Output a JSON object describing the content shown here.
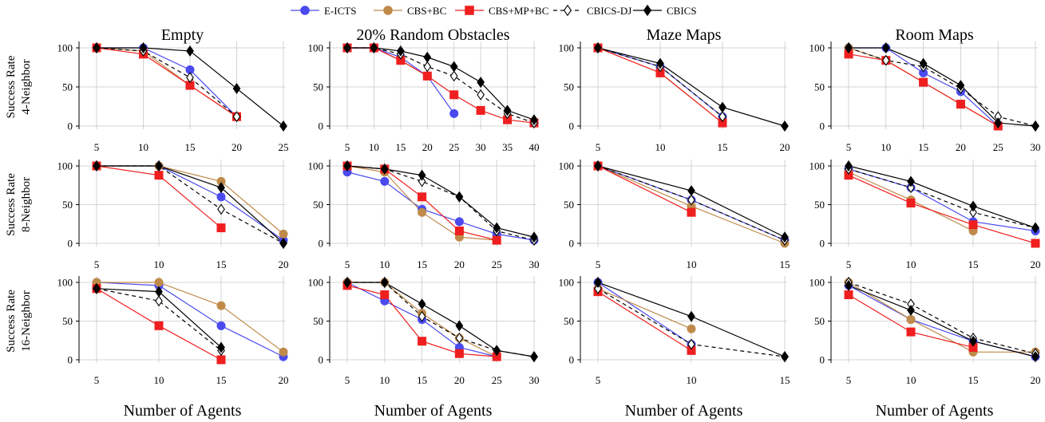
{
  "legend": [
    {
      "name": "E-ICTS",
      "color": "#4a4aef",
      "marker": "circle",
      "dash": false
    },
    {
      "name": "CBS+BC",
      "color": "#bf8a4a",
      "marker": "circle",
      "dash": false
    },
    {
      "name": "CBS+MP+BC",
      "color": "#ef1f1f",
      "marker": "square",
      "dash": false
    },
    {
      "name": "CBICS-DJ",
      "color": "#000000",
      "marker": "diamond-open",
      "dash": true
    },
    {
      "name": "CBICS",
      "color": "#000000",
      "marker": "diamond",
      "dash": false
    }
  ],
  "columns": [
    "Empty",
    "20% Random Obstacles",
    "Maze Maps",
    "Room Maps"
  ],
  "rows": [
    {
      "title": "Success Rate",
      "subtitle": "4-Neighbor"
    },
    {
      "title": "Success Rate",
      "subtitle": "8-Neighbor"
    },
    {
      "title": "Success Rate",
      "subtitle": "16-Neighbor"
    }
  ],
  "xlabel": "Number of Agents",
  "chart_data": [
    {
      "type": "line",
      "row": 0,
      "col": 0,
      "xticks": [
        5,
        10,
        15,
        20,
        25
      ],
      "ylim": [
        0,
        100
      ],
      "yticks": [
        0,
        50,
        100
      ],
      "series": [
        {
          "name": "E-ICTS",
          "x": [
            5,
            10,
            15,
            20
          ],
          "y": [
            100,
            100,
            72,
            12
          ]
        },
        {
          "name": "CBS+BC",
          "x": [
            5,
            10,
            15,
            20
          ],
          "y": [
            100,
            96,
            52,
            12
          ]
        },
        {
          "name": "CBS+MP+BC",
          "x": [
            5,
            10,
            15,
            20
          ],
          "y": [
            100,
            92,
            52,
            12
          ]
        },
        {
          "name": "CBICS-DJ",
          "x": [
            5,
            10,
            15,
            20
          ],
          "y": [
            100,
            96,
            62,
            12
          ]
        },
        {
          "name": "CBICS",
          "x": [
            5,
            10,
            15,
            20,
            25
          ],
          "y": [
            100,
            100,
            96,
            48,
            0
          ]
        }
      ]
    },
    {
      "type": "line",
      "row": 0,
      "col": 1,
      "xticks": [
        5,
        10,
        15,
        20,
        25,
        30,
        35,
        40
      ],
      "ylim": [
        0,
        100
      ],
      "yticks": [
        0,
        50,
        100
      ],
      "series": [
        {
          "name": "E-ICTS",
          "x": [
            5,
            10,
            15,
            20,
            25
          ],
          "y": [
            100,
            100,
            88,
            64,
            16
          ]
        },
        {
          "name": "CBS+BC",
          "x": [
            5,
            10,
            15,
            20
          ],
          "y": [
            100,
            100,
            84,
            64
          ]
        },
        {
          "name": "CBS+MP+BC",
          "x": [
            5,
            10,
            15,
            20,
            25,
            30,
            35,
            40
          ],
          "y": [
            100,
            100,
            84,
            64,
            40,
            20,
            8,
            4
          ]
        },
        {
          "name": "CBICS-DJ",
          "x": [
            5,
            10,
            15,
            20,
            25,
            30,
            35,
            40
          ],
          "y": [
            100,
            100,
            92,
            76,
            64,
            40,
            16,
            4
          ]
        },
        {
          "name": "CBICS",
          "x": [
            5,
            10,
            15,
            20,
            25,
            30,
            35,
            40
          ],
          "y": [
            100,
            100,
            96,
            88,
            76,
            56,
            20,
            8
          ]
        }
      ]
    },
    {
      "type": "line",
      "row": 0,
      "col": 2,
      "xticks": [
        5,
        10,
        15,
        20
      ],
      "ylim": [
        0,
        100
      ],
      "yticks": [
        0,
        50,
        100
      ],
      "series": [
        {
          "name": "E-ICTS",
          "x": [
            5,
            10,
            15
          ],
          "y": [
            100,
            76,
            12
          ]
        },
        {
          "name": "CBS+BC",
          "x": [
            5,
            10,
            15
          ],
          "y": [
            100,
            68,
            4
          ]
        },
        {
          "name": "CBS+MP+BC",
          "x": [
            5,
            10,
            15
          ],
          "y": [
            100,
            68,
            4
          ]
        },
        {
          "name": "CBICS-DJ",
          "x": [
            5,
            10,
            15
          ],
          "y": [
            100,
            76,
            12
          ]
        },
        {
          "name": "CBICS",
          "x": [
            5,
            10,
            15,
            20
          ],
          "y": [
            100,
            80,
            24,
            0
          ]
        }
      ]
    },
    {
      "type": "line",
      "row": 0,
      "col": 3,
      "xticks": [
        5,
        10,
        15,
        20,
        25,
        30
      ],
      "ylim": [
        0,
        100
      ],
      "yticks": [
        0,
        50,
        100
      ],
      "series": [
        {
          "name": "E-ICTS",
          "x": [
            5,
            10,
            15,
            20,
            25
          ],
          "y": [
            100,
            100,
            68,
            44,
            0
          ]
        },
        {
          "name": "CBS+BC",
          "x": [
            5,
            10,
            15,
            20,
            25
          ],
          "y": [
            100,
            84,
            56,
            28,
            0
          ]
        },
        {
          "name": "CBS+MP+BC",
          "x": [
            5,
            10,
            15,
            20,
            25
          ],
          "y": [
            92,
            84,
            56,
            28,
            0
          ]
        },
        {
          "name": "CBICS-DJ",
          "x": [
            5,
            10,
            15,
            20,
            25,
            30
          ],
          "y": [
            100,
            84,
            76,
            48,
            12,
            0
          ]
        },
        {
          "name": "CBICS",
          "x": [
            5,
            10,
            15,
            20,
            25,
            30
          ],
          "y": [
            100,
            100,
            80,
            52,
            4,
            0
          ]
        }
      ]
    },
    {
      "type": "line",
      "row": 1,
      "col": 0,
      "xticks": [
        5,
        10,
        15,
        20
      ],
      "ylim": [
        0,
        100
      ],
      "yticks": [
        0,
        50,
        100
      ],
      "series": [
        {
          "name": "E-ICTS",
          "x": [
            5,
            10,
            15,
            20
          ],
          "y": [
            100,
            100,
            60,
            4
          ]
        },
        {
          "name": "CBS+BC",
          "x": [
            5,
            10,
            15,
            20
          ],
          "y": [
            100,
            100,
            80,
            12
          ]
        },
        {
          "name": "CBS+MP+BC",
          "x": [
            5,
            10,
            15
          ],
          "y": [
            100,
            88,
            20
          ]
        },
        {
          "name": "CBICS-DJ",
          "x": [
            5,
            10,
            15,
            20
          ],
          "y": [
            100,
            100,
            44,
            0
          ]
        },
        {
          "name": "CBICS",
          "x": [
            5,
            10,
            15,
            20
          ],
          "y": [
            100,
            100,
            72,
            0
          ]
        }
      ]
    },
    {
      "type": "line",
      "row": 1,
      "col": 1,
      "xticks": [
        5,
        10,
        15,
        20,
        25,
        30
      ],
      "ylim": [
        0,
        100
      ],
      "yticks": [
        0,
        50,
        100
      ],
      "series": [
        {
          "name": "E-ICTS",
          "x": [
            5,
            10,
            15,
            20,
            25,
            30
          ],
          "y": [
            92,
            80,
            44,
            28,
            12,
            4
          ]
        },
        {
          "name": "CBS+BC",
          "x": [
            5,
            10,
            15,
            20,
            25
          ],
          "y": [
            100,
            92,
            40,
            8,
            4
          ]
        },
        {
          "name": "CBS+MP+BC",
          "x": [
            5,
            10,
            15,
            20,
            25
          ],
          "y": [
            100,
            96,
            60,
            16,
            4
          ]
        },
        {
          "name": "CBICS-DJ",
          "x": [
            5,
            10,
            15,
            20,
            25,
            30
          ],
          "y": [
            100,
            96,
            80,
            60,
            16,
            4
          ]
        },
        {
          "name": "CBICS",
          "x": [
            5,
            10,
            15,
            20,
            25,
            30
          ],
          "y": [
            100,
            96,
            88,
            60,
            20,
            8
          ]
        }
      ]
    },
    {
      "type": "line",
      "row": 1,
      "col": 2,
      "xticks": [
        5,
        10,
        15
      ],
      "ylim": [
        0,
        100
      ],
      "yticks": [
        0,
        50,
        100
      ],
      "series": [
        {
          "name": "E-ICTS",
          "x": [
            5,
            10,
            15
          ],
          "y": [
            100,
            56,
            4
          ]
        },
        {
          "name": "CBS+BC",
          "x": [
            5,
            10,
            15
          ],
          "y": [
            100,
            48,
            0
          ]
        },
        {
          "name": "CBS+MP+BC",
          "x": [
            5,
            10
          ],
          "y": [
            100,
            40
          ]
        },
        {
          "name": "CBICS-DJ",
          "x": [
            5,
            10,
            15
          ],
          "y": [
            100,
            56,
            4
          ]
        },
        {
          "name": "CBICS",
          "x": [
            5,
            10,
            15
          ],
          "y": [
            100,
            68,
            8
          ]
        }
      ]
    },
    {
      "type": "line",
      "row": 1,
      "col": 3,
      "xticks": [
        5,
        10,
        15,
        20
      ],
      "ylim": [
        0,
        100
      ],
      "yticks": [
        0,
        50,
        100
      ],
      "series": [
        {
          "name": "E-ICTS",
          "x": [
            5,
            10,
            15,
            20
          ],
          "y": [
            96,
            72,
            28,
            16
          ]
        },
        {
          "name": "CBS+BC",
          "x": [
            5,
            10,
            15
          ],
          "y": [
            92,
            56,
            16
          ]
        },
        {
          "name": "CBS+MP+BC",
          "x": [
            5,
            10,
            15,
            20
          ],
          "y": [
            88,
            52,
            24,
            0
          ]
        },
        {
          "name": "CBICS-DJ",
          "x": [
            5,
            10,
            15,
            20
          ],
          "y": [
            96,
            72,
            40,
            20
          ]
        },
        {
          "name": "CBICS",
          "x": [
            5,
            10,
            15,
            20
          ],
          "y": [
            100,
            80,
            48,
            20
          ]
        }
      ]
    },
    {
      "type": "line",
      "row": 2,
      "col": 0,
      "xticks": [
        5,
        10,
        15,
        20
      ],
      "ylim": [
        0,
        100
      ],
      "yticks": [
        0,
        50,
        100
      ],
      "series": [
        {
          "name": "E-ICTS",
          "x": [
            5,
            10,
            15,
            20
          ],
          "y": [
            100,
            96,
            44,
            4
          ]
        },
        {
          "name": "CBS+BC",
          "x": [
            5,
            10,
            15,
            20
          ],
          "y": [
            100,
            100,
            70,
            10
          ]
        },
        {
          "name": "CBS+MP+BC",
          "x": [
            5,
            10,
            15
          ],
          "y": [
            92,
            44,
            0
          ]
        },
        {
          "name": "CBICS-DJ",
          "x": [
            5,
            10,
            15
          ],
          "y": [
            92,
            76,
            12
          ]
        },
        {
          "name": "CBICS",
          "x": [
            5,
            10,
            15
          ],
          "y": [
            92,
            88,
            16
          ]
        }
      ]
    },
    {
      "type": "line",
      "row": 2,
      "col": 1,
      "xticks": [
        5,
        10,
        15,
        20,
        25,
        30
      ],
      "ylim": [
        0,
        100
      ],
      "yticks": [
        0,
        50,
        100
      ],
      "series": [
        {
          "name": "E-ICTS",
          "x": [
            5,
            10,
            15,
            20,
            25
          ],
          "y": [
            100,
            76,
            52,
            16,
            4
          ]
        },
        {
          "name": "CBS+BC",
          "x": [
            5,
            10,
            15,
            20,
            25
          ],
          "y": [
            100,
            100,
            60,
            28,
            4
          ]
        },
        {
          "name": "CBS+MP+BC",
          "x": [
            5,
            10,
            15,
            20,
            25
          ],
          "y": [
            96,
            84,
            24,
            8,
            4
          ]
        },
        {
          "name": "CBICS-DJ",
          "x": [
            5,
            10,
            15,
            20,
            25,
            30
          ],
          "y": [
            100,
            100,
            56,
            28,
            12,
            4
          ]
        },
        {
          "name": "CBICS",
          "x": [
            5,
            10,
            15,
            20,
            25,
            30
          ],
          "y": [
            100,
            100,
            72,
            44,
            12,
            4
          ]
        }
      ]
    },
    {
      "type": "line",
      "row": 2,
      "col": 2,
      "xticks": [
        5,
        10,
        15
      ],
      "ylim": [
        0,
        100
      ],
      "yticks": [
        0,
        50,
        100
      ],
      "series": [
        {
          "name": "E-ICTS",
          "x": [
            5,
            10
          ],
          "y": [
            100,
            20
          ]
        },
        {
          "name": "CBS+BC",
          "x": [
            5,
            10
          ],
          "y": [
            92,
            40
          ]
        },
        {
          "name": "CBS+MP+BC",
          "x": [
            5,
            10
          ],
          "y": [
            88,
            12
          ]
        },
        {
          "name": "CBICS-DJ",
          "x": [
            5,
            10,
            15
          ],
          "y": [
            92,
            20,
            4
          ]
        },
        {
          "name": "CBICS",
          "x": [
            5,
            10,
            15
          ],
          "y": [
            100,
            56,
            4
          ]
        }
      ]
    },
    {
      "type": "line",
      "row": 2,
      "col": 3,
      "xticks": [
        5,
        10,
        15,
        20
      ],
      "ylim": [
        0,
        100
      ],
      "yticks": [
        0,
        50,
        100
      ],
      "series": [
        {
          "name": "E-ICTS",
          "x": [
            5,
            10,
            15,
            20
          ],
          "y": [
            96,
            52,
            24,
            4
          ]
        },
        {
          "name": "CBS+BC",
          "x": [
            5,
            10,
            15,
            20
          ],
          "y": [
            100,
            52,
            10,
            10
          ]
        },
        {
          "name": "CBS+MP+BC",
          "x": [
            5,
            10,
            15
          ],
          "y": [
            84,
            36,
            16
          ]
        },
        {
          "name": "CBICS-DJ",
          "x": [
            5,
            10,
            15,
            20
          ],
          "y": [
            100,
            72,
            28,
            8
          ]
        },
        {
          "name": "CBICS",
          "x": [
            5,
            10,
            15,
            20
          ],
          "y": [
            96,
            64,
            24,
            4
          ]
        }
      ]
    }
  ]
}
